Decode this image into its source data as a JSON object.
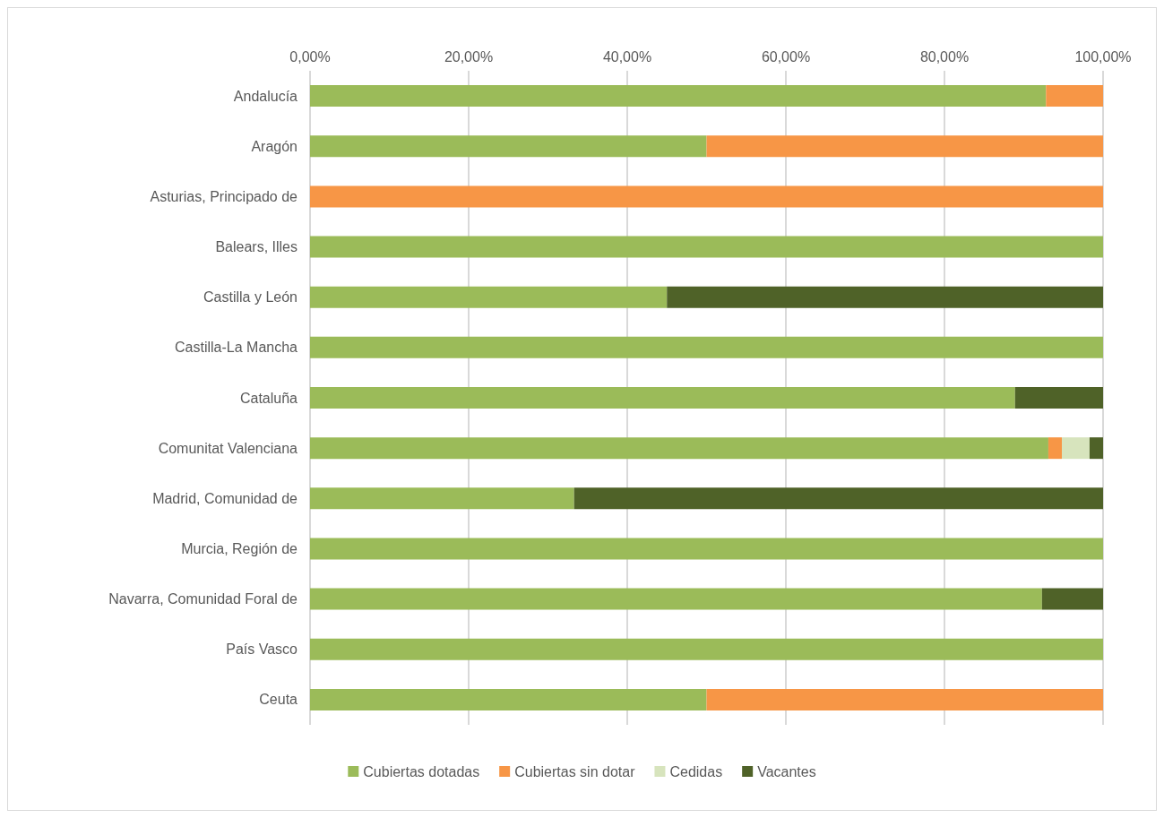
{
  "chart_data": {
    "type": "bar",
    "orientation": "horizontal",
    "stacked": true,
    "categories": [
      "Andalucía",
      "Aragón",
      "Asturias, Principado de",
      "Balears, Illes",
      "Castilla y León",
      "Castilla-La Mancha",
      "Cataluña",
      "Comunitat Valenciana",
      "Madrid, Comunidad de",
      "Murcia, Región de",
      "Navarra, Comunidad Foral de",
      "País Vasco",
      "Ceuta"
    ],
    "series": [
      {
        "name": "Cubiertas dotadas",
        "color": "#9bbb59",
        "values": [
          92.8,
          50,
          0,
          100,
          45,
          100,
          88.9,
          93.1,
          33.3,
          100,
          92.3,
          100,
          50
        ]
      },
      {
        "name": "Cubiertas sin dotar",
        "color": "#f79646",
        "values": [
          7.2,
          50,
          100,
          0,
          0,
          0,
          0,
          1.7,
          0,
          0,
          0,
          0,
          50
        ]
      },
      {
        "name": "Cedidas",
        "color": "#d7e4bd",
        "values": [
          0,
          0,
          0,
          0,
          0,
          0,
          0,
          3.5,
          0,
          0,
          0,
          0,
          0
        ]
      },
      {
        "name": "Vacantes",
        "color": "#4f6228",
        "values": [
          0,
          0,
          0,
          0,
          55,
          0,
          11.1,
          1.7,
          66.7,
          0,
          7.7,
          0,
          0
        ]
      }
    ],
    "xlim": [
      0,
      100
    ],
    "xticks": [
      {
        "value": 0,
        "label": "0,00%"
      },
      {
        "value": 20,
        "label": "20,00%"
      },
      {
        "value": 40,
        "label": "40,00%"
      },
      {
        "value": 60,
        "label": "60,00%"
      },
      {
        "value": 80,
        "label": "80,00%"
      },
      {
        "value": 100,
        "label": "100,00%"
      }
    ],
    "grid": "x",
    "legend": "bottom"
  }
}
